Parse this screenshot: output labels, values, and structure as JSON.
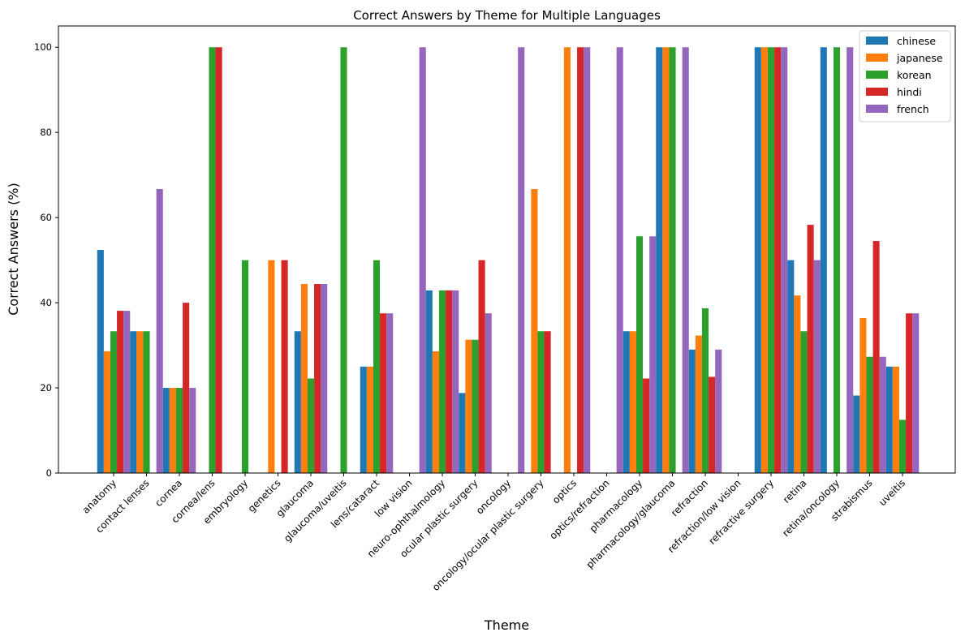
{
  "chart_data": {
    "type": "bar",
    "title": "Correct Answers by Theme for Multiple Languages",
    "xlabel": "Theme",
    "ylabel": "Correct Answers (%)",
    "ylim": [
      0,
      105
    ],
    "yticks": [
      0,
      20,
      40,
      60,
      80,
      100
    ],
    "legend_position": "top-right",
    "grid": false,
    "categories": [
      "anatomy",
      "contact lenses",
      "cornea",
      "cornea/lens",
      "embryology",
      "genetics",
      "glaucoma",
      "glaucoma/uveitis",
      "lens/cataract",
      "low vision",
      "neuro-ophthalmology",
      "ocular plastic surgery",
      "oncology",
      "oncology/ocular plastic surgery",
      "optics",
      "optics/refraction",
      "pharmacology",
      "pharmacology/glaucoma",
      "refraction",
      "refraction/low vision",
      "refractive surgery",
      "retina",
      "retina/oncology",
      "strabismus",
      "uveitis"
    ],
    "series": [
      {
        "name": "chinese",
        "color": "#1f77b4",
        "values": [
          52.4,
          33.3,
          20,
          0,
          0,
          0,
          33.3,
          0,
          25,
          0,
          42.9,
          18.8,
          0,
          0,
          0,
          0,
          33.3,
          100,
          29,
          0,
          100,
          50,
          100,
          18.2,
          25
        ]
      },
      {
        "name": "japanese",
        "color": "#ff7f0e",
        "values": [
          28.6,
          33.3,
          20,
          0,
          0,
          50,
          44.4,
          0,
          25,
          0,
          28.6,
          31.3,
          0,
          66.7,
          100,
          0,
          33.3,
          100,
          32.3,
          0,
          100,
          41.7,
          0,
          36.4,
          25
        ]
      },
      {
        "name": "korean",
        "color": "#2ca02c",
        "values": [
          33.3,
          33.3,
          20,
          100,
          50,
          0,
          22.2,
          100,
          50,
          0,
          42.9,
          31.3,
          0,
          33.3,
          0,
          0,
          55.6,
          100,
          38.7,
          0,
          100,
          33.3,
          100,
          27.3,
          12.5
        ]
      },
      {
        "name": "hindi",
        "color": "#d62728",
        "values": [
          38.1,
          0,
          40,
          100,
          0,
          50,
          44.4,
          0,
          37.5,
          0,
          42.9,
          50,
          0,
          33.3,
          100,
          0,
          22.2,
          0,
          22.6,
          0,
          100,
          58.3,
          0,
          54.5,
          37.5
        ]
      },
      {
        "name": "french",
        "color": "#9467bd",
        "values": [
          38.1,
          66.7,
          20,
          0,
          0,
          0,
          44.4,
          0,
          37.5,
          100,
          42.9,
          37.5,
          100,
          0,
          100,
          100,
          55.6,
          100,
          29,
          0,
          100,
          50,
          100,
          27.3,
          37.5
        ]
      }
    ]
  }
}
